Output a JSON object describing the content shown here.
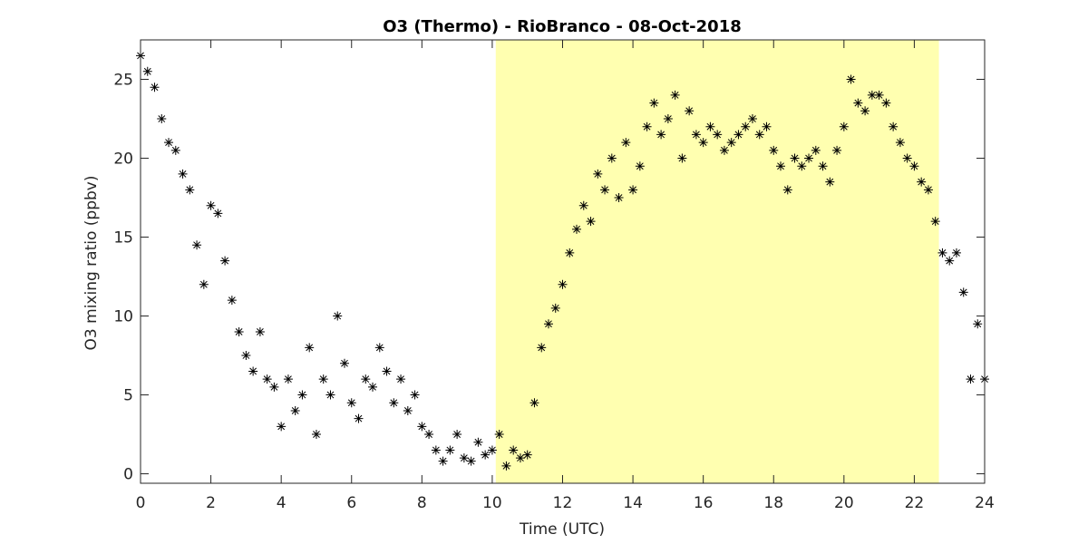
{
  "chart_data": {
    "type": "scatter",
    "title": "O3 (Thermo) - RioBranco - 08-Oct-2018",
    "xlabel": "Time (UTC)",
    "ylabel": "O3 mixing ratio (ppbv)",
    "xlim": [
      0,
      24
    ],
    "ylim": [
      -0.6,
      27.5
    ],
    "xticks": [
      0,
      2,
      4,
      6,
      8,
      10,
      12,
      14,
      16,
      18,
      20,
      22,
      24
    ],
    "yticks": [
      0,
      5,
      10,
      15,
      20,
      25
    ],
    "highlight_xlim": [
      10.1,
      22.7
    ],
    "highlight_color": "#ffffb0",
    "series": [
      {
        "color": "#000000",
        "x": [
          0,
          0.2,
          0.4,
          0.6,
          0.8,
          1,
          1.2,
          1.4,
          1.6,
          1.8,
          2,
          2.2,
          2.4,
          2.6,
          2.8,
          3,
          3.2,
          3.4,
          3.6,
          3.8,
          4,
          4.2,
          4.4,
          4.6,
          4.8,
          5,
          5.2,
          5.4,
          5.6,
          5.8,
          6,
          6.2,
          6.4,
          6.6,
          6.8,
          7,
          7.2,
          7.4,
          7.6,
          7.8,
          8,
          8.2,
          8.4,
          8.6,
          8.8,
          9,
          9.2,
          9.4,
          9.6,
          9.8,
          10,
          10.2,
          10.4,
          10.6,
          10.8,
          11,
          11.2,
          11.4,
          11.6,
          11.8,
          12,
          12.2,
          12.4,
          12.6,
          12.8,
          13,
          13.2,
          13.4,
          13.6,
          13.8,
          14,
          14.2,
          14.4,
          14.6,
          14.8,
          15,
          15.2,
          15.4,
          15.6,
          15.8,
          16,
          16.2,
          16.4,
          16.6,
          16.8,
          17,
          17.2,
          17.4,
          17.6,
          17.8,
          18,
          18.2,
          18.4,
          18.6,
          18.8,
          19,
          19.2,
          19.4,
          19.6,
          19.8,
          20,
          20.2,
          20.4,
          20.6,
          20.8,
          21,
          21.2,
          21.4,
          21.6,
          21.8,
          22,
          22.2,
          22.4,
          22.6,
          22.8,
          23,
          23.2,
          23.4,
          23.6,
          23.8,
          24
        ],
        "values": [
          26.5,
          25.5,
          24.5,
          22.5,
          21,
          20.5,
          19,
          18,
          14.5,
          12,
          17,
          16.5,
          13.5,
          11,
          9,
          7.5,
          6.5,
          9,
          6,
          5.5,
          3,
          6,
          4,
          5,
          8,
          2.5,
          6,
          5,
          10,
          7,
          4.5,
          3.5,
          6,
          5.5,
          8,
          6.5,
          4.5,
          6,
          4,
          5,
          3,
          2.5,
          1.5,
          0.8,
          1.5,
          2.5,
          1,
          0.8,
          2,
          1.2,
          1.5,
          2.5,
          0.5,
          1.5,
          1,
          1.2,
          4.5,
          8,
          9.5,
          10.5,
          12,
          14,
          15.5,
          17,
          16,
          19,
          18,
          20,
          17.5,
          21,
          18,
          19.5,
          22,
          23.5,
          21.5,
          22.5,
          24,
          20,
          23,
          21.5,
          21,
          22,
          21.5,
          20.5,
          21,
          21.5,
          22,
          22.5,
          21.5,
          22,
          20.5,
          19.5,
          18,
          20,
          19.5,
          20,
          20.5,
          19.5,
          18.5,
          20.5,
          22,
          25,
          23.5,
          23,
          24,
          24,
          23.5,
          22,
          21,
          20,
          19.5,
          18.5,
          18,
          16,
          14,
          13.5,
          14,
          11.5,
          6,
          9.5,
          6
        ]
      }
    ]
  }
}
